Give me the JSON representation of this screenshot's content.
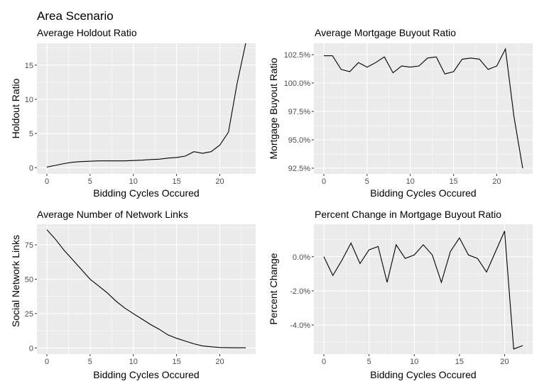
{
  "title": "Area Scenario",
  "chart_data": [
    {
      "type": "line",
      "title": "Average Holdout Ratio",
      "xlabel": "Bidding Cycles Occured",
      "ylabel": "Holdout Ratio",
      "xlim": [
        -1.15,
        24.15
      ],
      "ylim": [
        -0.9,
        18.2
      ],
      "xticks": [
        0,
        5,
        10,
        15,
        20
      ],
      "yticks": [
        0,
        5,
        10,
        15
      ],
      "ytick_labels": [
        "0",
        "5",
        "10",
        "15"
      ],
      "grid": true,
      "x": [
        0,
        1,
        2,
        3,
        4,
        5,
        6,
        7,
        8,
        9,
        10,
        11,
        12,
        13,
        14,
        15,
        16,
        17,
        18,
        19,
        20,
        21,
        22,
        23
      ],
      "values": [
        0.1,
        0.35,
        0.6,
        0.8,
        0.9,
        0.95,
        1.0,
        1.0,
        1.0,
        1.0,
        1.05,
        1.1,
        1.2,
        1.25,
        1.4,
        1.5,
        1.7,
        2.35,
        2.1,
        2.35,
        3.3,
        5.2,
        12.3,
        18.2
      ]
    },
    {
      "type": "line",
      "title": "Average Mortgage Buyout Ratio",
      "xlabel": "Bidding Cycles Occured",
      "ylabel": "Mortgage Buyout Ratio",
      "xlim": [
        -1.15,
        24.15
      ],
      "ylim": [
        92.0,
        103.5
      ],
      "xticks": [
        0,
        5,
        10,
        15,
        20
      ],
      "yticks": [
        92.5,
        95.0,
        97.5,
        100.0,
        102.5
      ],
      "ytick_labels": [
        "92.5%",
        "95.0%",
        "97.5%",
        "100.0%",
        "102.5%"
      ],
      "grid": true,
      "x": [
        0,
        1,
        2,
        3,
        4,
        5,
        6,
        7,
        8,
        9,
        10,
        11,
        12,
        13,
        14,
        15,
        16,
        17,
        18,
        19,
        20,
        21,
        22,
        23
      ],
      "values": [
        102.4,
        102.4,
        101.2,
        101.0,
        101.8,
        101.4,
        101.8,
        102.3,
        100.9,
        101.5,
        101.4,
        101.5,
        102.2,
        102.3,
        100.8,
        101.0,
        102.1,
        102.2,
        102.1,
        101.2,
        101.5,
        103.0,
        97.0,
        92.5
      ]
    },
    {
      "type": "line",
      "title": "Average Number of Network Links",
      "xlabel": "Bidding Cycles Occured",
      "ylabel": "Social Network Links",
      "xlim": [
        -1.15,
        24.15
      ],
      "ylim": [
        -4.5,
        90
      ],
      "xticks": [
        0,
        5,
        10,
        15,
        20
      ],
      "yticks": [
        0,
        25,
        50,
        75
      ],
      "ytick_labels": [
        "0",
        "25",
        "50",
        "75"
      ],
      "grid": true,
      "x": [
        0,
        1,
        2,
        3,
        4,
        5,
        6,
        7,
        8,
        9,
        10,
        11,
        12,
        13,
        14,
        15,
        16,
        17,
        18,
        19,
        20,
        21,
        22,
        23
      ],
      "values": [
        86,
        79,
        71,
        64,
        57,
        50,
        45,
        40,
        34,
        29,
        25,
        21,
        17,
        13.5,
        9.5,
        7,
        5,
        3,
        1.5,
        0.8,
        0.3,
        0.2,
        0.1,
        0.1
      ]
    },
    {
      "type": "line",
      "title": "Percent Change in Mortgage Buyout Ratio",
      "xlabel": "Bidding Cycles Occured",
      "ylabel": "Percent Change",
      "xlim": [
        -1.1,
        23.1
      ],
      "ylim": [
        -5.7,
        1.9
      ],
      "xticks": [
        0,
        5,
        10,
        15,
        20
      ],
      "yticks": [
        -4.0,
        -2.0,
        0.0
      ],
      "ytick_labels": [
        "-4.0%",
        "-2.0%",
        "0.0%"
      ],
      "grid": true,
      "x": [
        0,
        1,
        2,
        3,
        4,
        5,
        6,
        7,
        8,
        9,
        10,
        11,
        12,
        13,
        14,
        15,
        16,
        17,
        18,
        19,
        20,
        21,
        22
      ],
      "values": [
        0.0,
        -1.1,
        -0.2,
        0.8,
        -0.4,
        0.4,
        0.6,
        -1.5,
        0.7,
        -0.1,
        0.1,
        0.7,
        0.1,
        -1.5,
        0.3,
        1.1,
        0.1,
        -0.1,
        -0.9,
        0.3,
        1.5,
        -5.4,
        -5.2
      ]
    }
  ]
}
